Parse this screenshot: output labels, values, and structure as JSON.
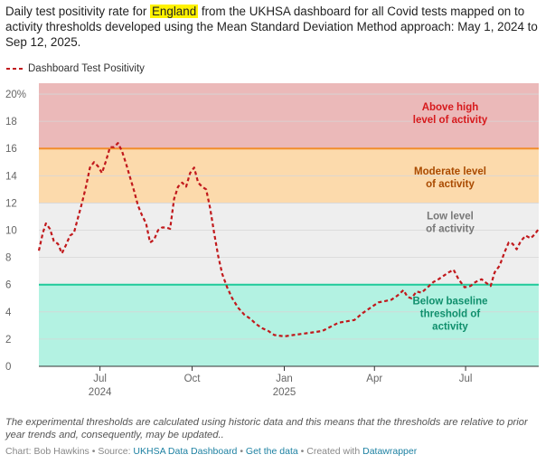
{
  "title": {
    "before": "Daily test positivity rate for ",
    "highlight": "England",
    "after": " from the UKHSA dashboard for all Covid tests mapped on to activity thresholds developed using the Mean Standard Deviation Method approach: May 1, 2024 to Sep 12, 2025."
  },
  "legend": {
    "label": "Dashboard Test Positivity",
    "color": "#d7191c"
  },
  "colors": {
    "above_high": "#ebb9b9",
    "moderate": "#fcdaac",
    "low": "#eeeeee",
    "below_baseline": "#b3f2e2",
    "high_line": "#f28e2b",
    "baseline_line": "#20c99a",
    "label_above": "#d7191c",
    "label_moderate": "#a94a00",
    "label_low": "#777777",
    "label_below": "#0f8f6c",
    "series": "#c1191c"
  },
  "chart_data": {
    "type": "line",
    "title": "Daily test positivity rate for England",
    "xlabel": "",
    "ylabel": "",
    "x_range": [
      "2024-05-01",
      "2025-09-12"
    ],
    "ylim": [
      0,
      20.8
    ],
    "y_ticks": [
      0,
      2,
      4,
      6,
      8,
      10,
      12,
      14,
      16,
      18,
      20
    ],
    "y_tick_labels": [
      "0",
      "2",
      "4",
      "6",
      "8",
      "10",
      "12",
      "14",
      "16",
      "18",
      "20%"
    ],
    "x_ticks": [
      {
        "date": "2024-07-01",
        "label": "Jul",
        "year": "2024"
      },
      {
        "date": "2024-10-01",
        "label": "Oct",
        "year": ""
      },
      {
        "date": "2025-01-01",
        "label": "Jan",
        "year": "2025"
      },
      {
        "date": "2025-04-01",
        "label": "Apr",
        "year": ""
      },
      {
        "date": "2025-07-01",
        "label": "Jul",
        "year": ""
      }
    ],
    "bands": [
      {
        "name": "above_high",
        "from": 16,
        "to": 20.8,
        "label_lines": [
          "Above high",
          "level of activity"
        ],
        "label_y": 18.6
      },
      {
        "name": "moderate",
        "from": 12,
        "to": 16,
        "label_lines": [
          "Moderate level",
          "of activity"
        ],
        "label_y": 13.9
      },
      {
        "name": "low",
        "from": 6,
        "to": 12,
        "label_lines": [
          "Low level",
          "of activity"
        ],
        "label_y": 10.6
      },
      {
        "name": "below_baseline",
        "from": 0,
        "to": 6,
        "label_lines": [
          "Below baseline",
          "threshold of",
          "activity"
        ],
        "label_y": 3.9
      }
    ],
    "threshold_lines": [
      {
        "name": "high",
        "value": 16
      },
      {
        "name": "baseline",
        "value": 6
      }
    ],
    "series": [
      {
        "name": "Dashboard Test Positivity",
        "points": [
          [
            "2024-05-01",
            8.5
          ],
          [
            "2024-05-05",
            9.8
          ],
          [
            "2024-05-08",
            10.5
          ],
          [
            "2024-05-12",
            10.1
          ],
          [
            "2024-05-16",
            9.2
          ],
          [
            "2024-05-20",
            9.0
          ],
          [
            "2024-05-24",
            8.3
          ],
          [
            "2024-05-28",
            8.9
          ],
          [
            "2024-06-01",
            9.6
          ],
          [
            "2024-06-05",
            9.8
          ],
          [
            "2024-06-09",
            10.9
          ],
          [
            "2024-06-13",
            12.0
          ],
          [
            "2024-06-17",
            13.2
          ],
          [
            "2024-06-21",
            14.6
          ],
          [
            "2024-06-25",
            15.0
          ],
          [
            "2024-06-29",
            14.7
          ],
          [
            "2024-07-03",
            14.2
          ],
          [
            "2024-07-07",
            15.1
          ],
          [
            "2024-07-11",
            16.1
          ],
          [
            "2024-07-15",
            16.1
          ],
          [
            "2024-07-19",
            16.4
          ],
          [
            "2024-07-23",
            15.8
          ],
          [
            "2024-07-27",
            14.9
          ],
          [
            "2024-07-31",
            13.9
          ],
          [
            "2024-08-04",
            12.9
          ],
          [
            "2024-08-08",
            11.8
          ],
          [
            "2024-08-12",
            11.1
          ],
          [
            "2024-08-16",
            10.5
          ],
          [
            "2024-08-20",
            9.1
          ],
          [
            "2024-08-24",
            9.3
          ],
          [
            "2024-08-28",
            10.0
          ],
          [
            "2024-09-01",
            10.2
          ],
          [
            "2024-09-05",
            10.2
          ],
          [
            "2024-09-09",
            10.1
          ],
          [
            "2024-09-13",
            12.3
          ],
          [
            "2024-09-17",
            13.2
          ],
          [
            "2024-09-21",
            13.5
          ],
          [
            "2024-09-25",
            13.2
          ],
          [
            "2024-09-29",
            14.2
          ],
          [
            "2024-10-03",
            14.6
          ],
          [
            "2024-10-07",
            13.5
          ],
          [
            "2024-10-11",
            13.2
          ],
          [
            "2024-10-15",
            13.0
          ],
          [
            "2024-10-19",
            11.6
          ],
          [
            "2024-10-23",
            9.8
          ],
          [
            "2024-10-27",
            8.1
          ],
          [
            "2024-10-31",
            6.8
          ],
          [
            "2024-11-05",
            5.8
          ],
          [
            "2024-11-10",
            5.0
          ],
          [
            "2024-11-16",
            4.3
          ],
          [
            "2024-11-22",
            3.8
          ],
          [
            "2024-11-28",
            3.5
          ],
          [
            "2024-12-04",
            3.1
          ],
          [
            "2024-12-10",
            2.8
          ],
          [
            "2024-12-16",
            2.6
          ],
          [
            "2024-12-22",
            2.3
          ],
          [
            "2025-01-01",
            2.2
          ],
          [
            "2025-01-10",
            2.3
          ],
          [
            "2025-01-20",
            2.4
          ],
          [
            "2025-01-30",
            2.5
          ],
          [
            "2025-02-08",
            2.6
          ],
          [
            "2025-02-16",
            2.9
          ],
          [
            "2025-02-24",
            3.2
          ],
          [
            "2025-03-04",
            3.3
          ],
          [
            "2025-03-12",
            3.4
          ],
          [
            "2025-03-20",
            3.9
          ],
          [
            "2025-03-28",
            4.3
          ],
          [
            "2025-04-05",
            4.7
          ],
          [
            "2025-04-12",
            4.8
          ],
          [
            "2025-04-18",
            4.9
          ],
          [
            "2025-04-24",
            5.2
          ],
          [
            "2025-04-30",
            5.6
          ],
          [
            "2025-05-04",
            5.1
          ],
          [
            "2025-05-08",
            5.0
          ],
          [
            "2025-05-13",
            5.5
          ],
          [
            "2025-05-18",
            5.4
          ],
          [
            "2025-05-24",
            5.8
          ],
          [
            "2025-05-30",
            6.2
          ],
          [
            "2025-06-04",
            6.4
          ],
          [
            "2025-06-08",
            6.6
          ],
          [
            "2025-06-14",
            6.9
          ],
          [
            "2025-06-19",
            7.1
          ],
          [
            "2025-06-24",
            6.4
          ],
          [
            "2025-06-30",
            5.8
          ],
          [
            "2025-07-06",
            5.9
          ],
          [
            "2025-07-11",
            6.2
          ],
          [
            "2025-07-17",
            6.4
          ],
          [
            "2025-07-22",
            6.1
          ],
          [
            "2025-07-26",
            5.9
          ],
          [
            "2025-07-30",
            6.9
          ],
          [
            "2025-08-04",
            7.4
          ],
          [
            "2025-08-09",
            8.4
          ],
          [
            "2025-08-13",
            9.1
          ],
          [
            "2025-08-17",
            9.0
          ],
          [
            "2025-08-21",
            8.6
          ],
          [
            "2025-08-25",
            9.2
          ],
          [
            "2025-08-30",
            9.6
          ],
          [
            "2025-09-04",
            9.4
          ],
          [
            "2025-09-08",
            9.7
          ],
          [
            "2025-09-12",
            10.1
          ]
        ]
      }
    ]
  },
  "note": "The experimental thresholds are calculated using historic data and this means that the thresholds are relative to prior year trends and, consequently, may be updated..",
  "footer": {
    "chart_by": "Chart: Bob Hawkins",
    "source_prefix": "Source: ",
    "source_link": "UKHSA Data Dashboard",
    "get_data": "Get the data",
    "created_prefix": "Created with ",
    "created_link": "Datawrapper",
    "separator": " • "
  }
}
